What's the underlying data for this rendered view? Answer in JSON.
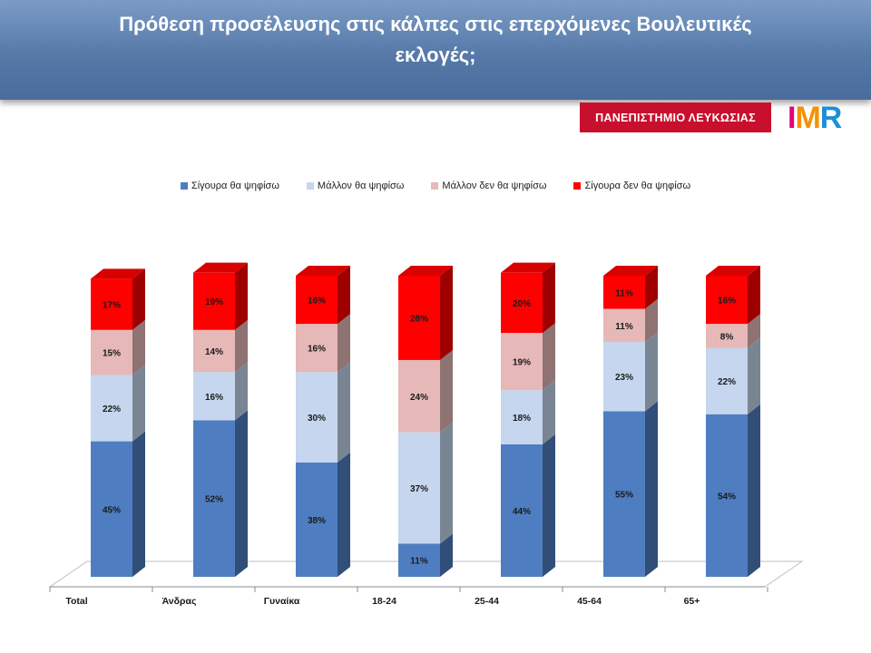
{
  "header": {
    "title_line1": "Πρόθεση προσέλευσης στις κάλπες στις επερχόμενες Βουλευτικές",
    "title_line2": "εκλογές;"
  },
  "logos": {
    "university": "ΠΑΝΕΠΙΣΤΗΜΙΟ ΛΕΥΚΩΣΙΑΣ",
    "imr": "IMR"
  },
  "colors": {
    "header": "#5679a8",
    "series": [
      "#4f7dc1",
      "#c5d6ee",
      "#e6b8b8",
      "#ff0000"
    ]
  },
  "chart_data": {
    "type": "bar",
    "stacked": true,
    "percent": true,
    "categories": [
      "Total",
      "Άνδρας",
      "Γυναίκα",
      "18-24",
      "25-44",
      "45-64",
      "65+"
    ],
    "series": [
      {
        "name": "Σίγουρα θα ψηφίσω",
        "values": [
          45,
          52,
          38,
          11,
          44,
          55,
          54
        ]
      },
      {
        "name": "Μάλλον θα ψηφίσω",
        "values": [
          22,
          16,
          30,
          37,
          18,
          23,
          22
        ]
      },
      {
        "name": "Μάλλον δεν θα ψηφίσω",
        "values": [
          15,
          14,
          16,
          24,
          19,
          11,
          8
        ]
      },
      {
        "name": "Σίγουρα δεν θα ψηφίσω",
        "values": [
          17,
          19,
          16,
          28,
          20,
          11,
          16
        ]
      }
    ],
    "legend": "top",
    "grid": false
  }
}
